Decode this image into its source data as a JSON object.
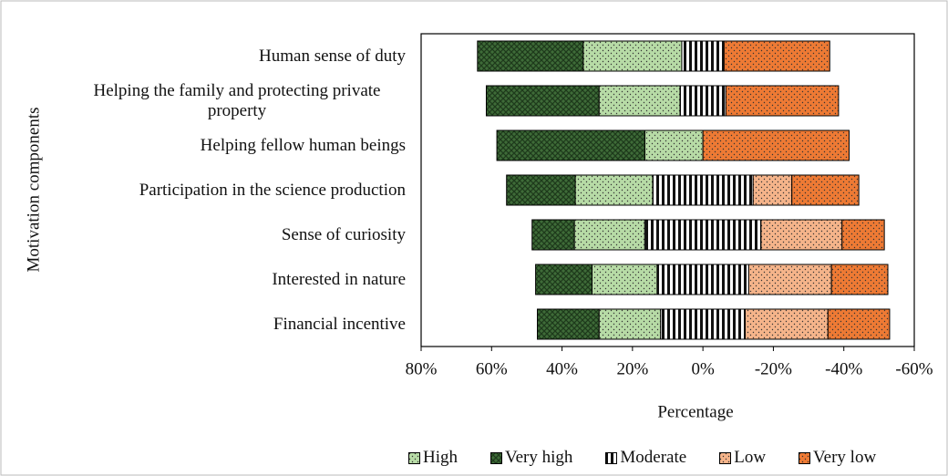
{
  "chart_data": {
    "type": "diverging_bar",
    "x_label": "Percentage",
    "y_label": "Motivation components",
    "categories": [
      "Human sense of duty",
      "Helping the family and protecting private property",
      "Helping fellow human beings",
      "Participation in the science production",
      "Sense of curiosity",
      "Interested in nature",
      "Financial incentive"
    ],
    "series": [
      {
        "name": "High",
        "color": "#b7dba6",
        "pattern": "dots",
        "values": [
          28,
          23,
          16.5,
          22,
          20,
          18.5,
          17.5
        ]
      },
      {
        "name": "Very high",
        "color": "#3e6b38",
        "pattern": "crosshatch",
        "values": [
          30,
          32,
          42,
          19.5,
          12,
          16,
          17.5
        ]
      },
      {
        "name": "Moderate",
        "color": "#ffffff",
        "pattern": "stripes",
        "values": [
          12,
          13,
          0,
          28.5,
          33,
          26,
          24
        ]
      },
      {
        "name": "Low",
        "color": "#f5b48a",
        "pattern": "dots",
        "values": [
          0,
          0,
          0,
          11,
          23,
          23.5,
          23.5
        ]
      },
      {
        "name": "Very low",
        "color": "#ee7a34",
        "pattern": "dots",
        "values": [
          30,
          32,
          41.5,
          19,
          12,
          16,
          17.5
        ]
      }
    ],
    "xlim": [
      80,
      -60
    ],
    "xticks": [
      {
        "value": 80,
        "label": "80%"
      },
      {
        "value": 60,
        "label": "60%"
      },
      {
        "value": 40,
        "label": "40%"
      },
      {
        "value": 20,
        "label": "20%"
      },
      {
        "value": 0,
        "label": "0%"
      },
      {
        "value": -20,
        "label": "-20%"
      },
      {
        "value": -40,
        "label": "-40%"
      },
      {
        "value": -60,
        "label": "-60%"
      }
    ]
  }
}
